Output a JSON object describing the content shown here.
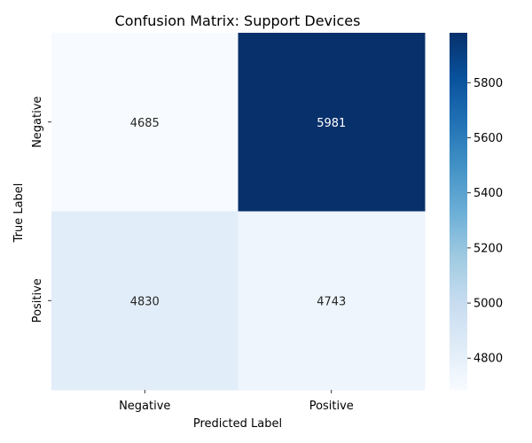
{
  "chart_data": {
    "type": "heatmap",
    "title": "Confusion Matrix: Support Devices",
    "xlabel": "Predicted Label",
    "ylabel": "True Label",
    "x_categories": [
      "Negative",
      "Positive"
    ],
    "y_categories": [
      "Negative",
      "Positive"
    ],
    "values": [
      [
        4685,
        5981
      ],
      [
        4830,
        4743
      ]
    ],
    "colormap": "Blues",
    "colorbar": {
      "min": 4685,
      "max": 5981,
      "ticks": [
        4800,
        5000,
        5200,
        5400,
        5600,
        5800
      ]
    },
    "colors": {
      "low": "#f7fbff",
      "high": "#08306b"
    }
  }
}
